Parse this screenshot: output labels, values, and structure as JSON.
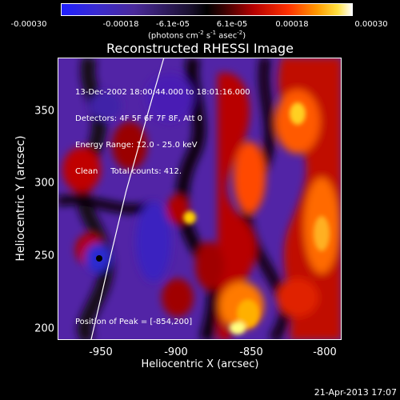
{
  "colorbar": {
    "ticks": [
      "-0.00030",
      "-0.00018",
      "-6.1e-05",
      "6.1e-05",
      "0.00018",
      "0.00030"
    ],
    "unit_main": "(photons cm",
    "unit_exp1": "-2",
    "unit_s": " s",
    "unit_exp2": "-1",
    "unit_asec": " asec",
    "unit_exp3": "-2",
    "unit_close": ")"
  },
  "chart_data": {
    "type": "heatmap",
    "title": "Reconstructed RHESSI Image",
    "xlabel": "Heliocentric X (arcsec)",
    "ylabel": "Heliocentric Y (arcsec)",
    "xlim": [
      -977,
      -790
    ],
    "ylim": [
      193,
      378
    ],
    "xticks": [
      "-950",
      "-900",
      "-850",
      "-800"
    ],
    "xtick_values": [
      -950,
      -900,
      -850,
      -800
    ],
    "yticks": [
      "200",
      "250",
      "300",
      "350"
    ],
    "ytick_values": [
      200,
      250,
      300,
      350
    ],
    "colorbar_range": [
      -0.0003,
      0.0003
    ],
    "annotations": [
      "13-Dec-2002 18:00:44.000 to 18:01:16.000",
      "Detectors: 4F 5F 6F 7F 8F, Att 0",
      "Energy Range: 12.0 - 25.0 keV",
      "Clean     Total counts: 412."
    ],
    "peak_label": "Position of Peak = [-854,200]",
    "limb_curve": [
      [
        -955,
        193
      ],
      [
        -944,
        240
      ],
      [
        -932,
        290
      ],
      [
        -918,
        340
      ],
      [
        -907,
        378
      ]
    ],
    "colormap": [
      "#0000ff",
      "#000000",
      "#ff0000",
      "#ffff00",
      "#ffffff"
    ]
  },
  "footer": {
    "date": "21-Apr-2013 17:07"
  }
}
